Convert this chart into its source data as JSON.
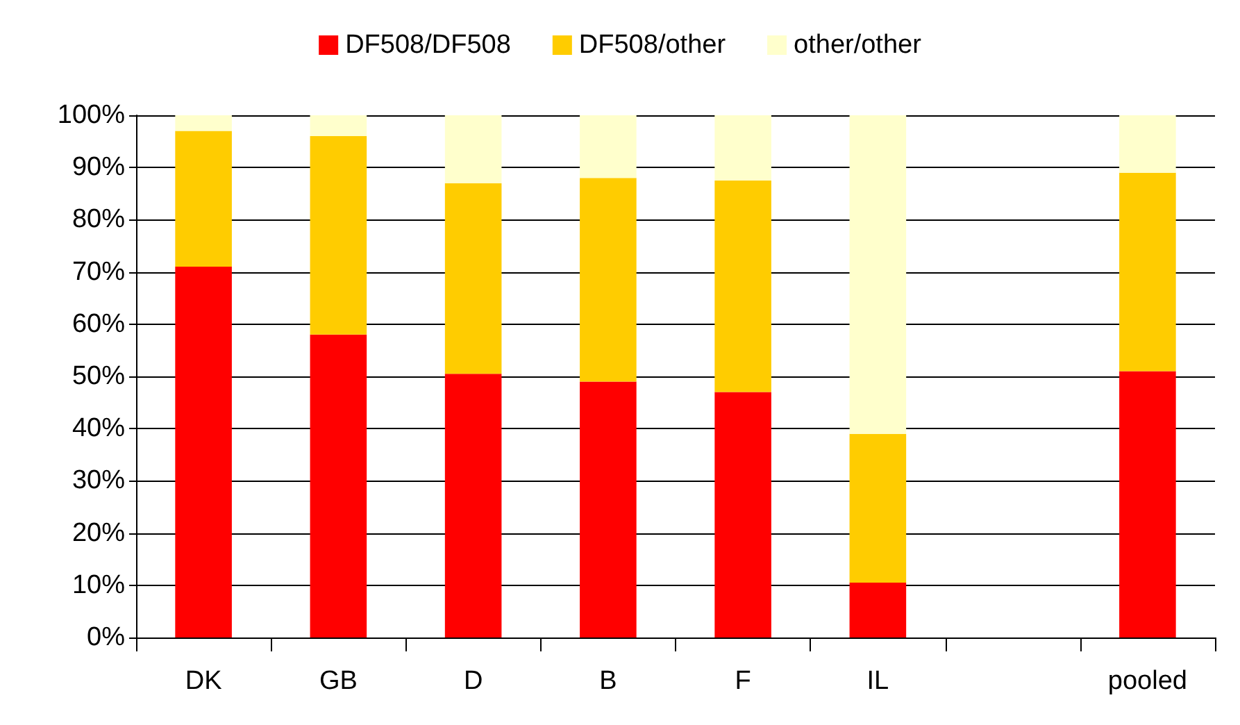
{
  "chart_data": {
    "type": "bar",
    "stacked": true,
    "categories": [
      "DK",
      "GB",
      "D",
      "B",
      "F",
      "IL",
      null,
      "pooled"
    ],
    "series": [
      {
        "name": "DF508/DF508",
        "color": "#ff0000",
        "values": [
          71,
          58,
          50.5,
          49,
          47,
          10.5,
          null,
          51
        ]
      },
      {
        "name": "DF508/other",
        "color": "#ffcc00",
        "values": [
          26,
          38,
          36.5,
          39,
          40.5,
          28.5,
          null,
          38
        ]
      },
      {
        "name": "other/other",
        "color": "#ffffcc",
        "values": [
          3,
          4,
          13,
          12,
          12.5,
          61,
          null,
          11
        ]
      }
    ],
    "ylim": [
      0,
      100
    ],
    "yticks": [
      {
        "value": 0,
        "label": "0%"
      },
      {
        "value": 10,
        "label": "10%"
      },
      {
        "value": 20,
        "label": "20%"
      },
      {
        "value": 30,
        "label": "30%"
      },
      {
        "value": 40,
        "label": "40%"
      },
      {
        "value": 50,
        "label": "50%"
      },
      {
        "value": 60,
        "label": "60%"
      },
      {
        "value": 70,
        "label": "70%"
      },
      {
        "value": 80,
        "label": "80%"
      },
      {
        "value": 90,
        "label": "90%"
      },
      {
        "value": 100,
        "label": "100%"
      }
    ],
    "grid": "y",
    "legend": "top"
  }
}
